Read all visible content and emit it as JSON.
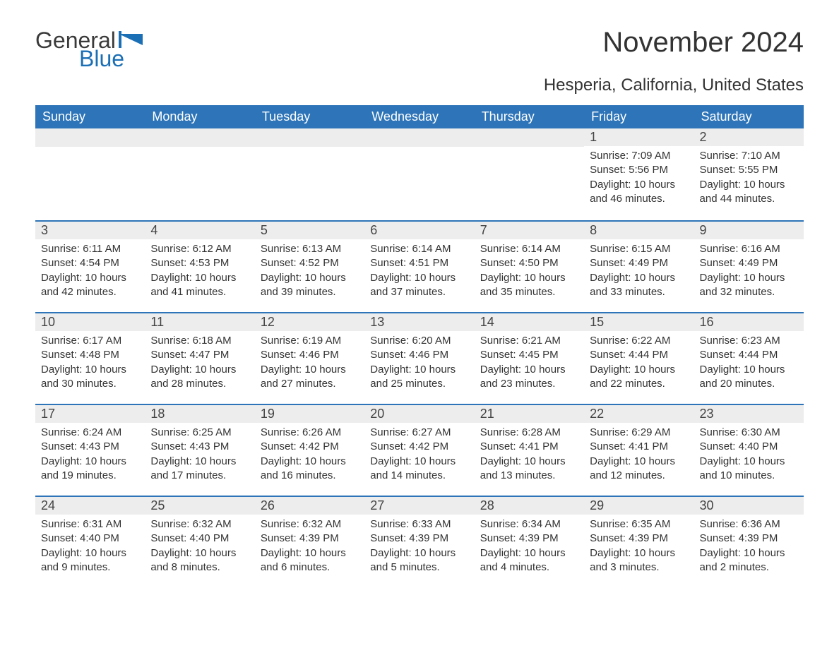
{
  "logo": {
    "general": "General",
    "blue": "Blue"
  },
  "title": "November 2024",
  "location": "Hesperia, California, United States",
  "colors": {
    "header_bg": "#2d74b8",
    "header_text": "#ffffff",
    "daynum_bg": "#ededed",
    "border": "#2d74b8",
    "text": "#333333",
    "logo_blue": "#1b6fb5",
    "page_bg": "#ffffff"
  },
  "typography": {
    "title_fontsize": 40,
    "location_fontsize": 24,
    "header_fontsize": 18,
    "daynum_fontsize": 18,
    "body_fontsize": 15
  },
  "weekdays": [
    "Sunday",
    "Monday",
    "Tuesday",
    "Wednesday",
    "Thursday",
    "Friday",
    "Saturday"
  ],
  "weeks": [
    [
      null,
      null,
      null,
      null,
      null,
      {
        "n": "1",
        "sunrise": "Sunrise: 7:09 AM",
        "sunset": "Sunset: 5:56 PM",
        "daylight": "Daylight: 10 hours and 46 minutes."
      },
      {
        "n": "2",
        "sunrise": "Sunrise: 7:10 AM",
        "sunset": "Sunset: 5:55 PM",
        "daylight": "Daylight: 10 hours and 44 minutes."
      }
    ],
    [
      {
        "n": "3",
        "sunrise": "Sunrise: 6:11 AM",
        "sunset": "Sunset: 4:54 PM",
        "daylight": "Daylight: 10 hours and 42 minutes."
      },
      {
        "n": "4",
        "sunrise": "Sunrise: 6:12 AM",
        "sunset": "Sunset: 4:53 PM",
        "daylight": "Daylight: 10 hours and 41 minutes."
      },
      {
        "n": "5",
        "sunrise": "Sunrise: 6:13 AM",
        "sunset": "Sunset: 4:52 PM",
        "daylight": "Daylight: 10 hours and 39 minutes."
      },
      {
        "n": "6",
        "sunrise": "Sunrise: 6:14 AM",
        "sunset": "Sunset: 4:51 PM",
        "daylight": "Daylight: 10 hours and 37 minutes."
      },
      {
        "n": "7",
        "sunrise": "Sunrise: 6:14 AM",
        "sunset": "Sunset: 4:50 PM",
        "daylight": "Daylight: 10 hours and 35 minutes."
      },
      {
        "n": "8",
        "sunrise": "Sunrise: 6:15 AM",
        "sunset": "Sunset: 4:49 PM",
        "daylight": "Daylight: 10 hours and 33 minutes."
      },
      {
        "n": "9",
        "sunrise": "Sunrise: 6:16 AM",
        "sunset": "Sunset: 4:49 PM",
        "daylight": "Daylight: 10 hours and 32 minutes."
      }
    ],
    [
      {
        "n": "10",
        "sunrise": "Sunrise: 6:17 AM",
        "sunset": "Sunset: 4:48 PM",
        "daylight": "Daylight: 10 hours and 30 minutes."
      },
      {
        "n": "11",
        "sunrise": "Sunrise: 6:18 AM",
        "sunset": "Sunset: 4:47 PM",
        "daylight": "Daylight: 10 hours and 28 minutes."
      },
      {
        "n": "12",
        "sunrise": "Sunrise: 6:19 AM",
        "sunset": "Sunset: 4:46 PM",
        "daylight": "Daylight: 10 hours and 27 minutes."
      },
      {
        "n": "13",
        "sunrise": "Sunrise: 6:20 AM",
        "sunset": "Sunset: 4:46 PM",
        "daylight": "Daylight: 10 hours and 25 minutes."
      },
      {
        "n": "14",
        "sunrise": "Sunrise: 6:21 AM",
        "sunset": "Sunset: 4:45 PM",
        "daylight": "Daylight: 10 hours and 23 minutes."
      },
      {
        "n": "15",
        "sunrise": "Sunrise: 6:22 AM",
        "sunset": "Sunset: 4:44 PM",
        "daylight": "Daylight: 10 hours and 22 minutes."
      },
      {
        "n": "16",
        "sunrise": "Sunrise: 6:23 AM",
        "sunset": "Sunset: 4:44 PM",
        "daylight": "Daylight: 10 hours and 20 minutes."
      }
    ],
    [
      {
        "n": "17",
        "sunrise": "Sunrise: 6:24 AM",
        "sunset": "Sunset: 4:43 PM",
        "daylight": "Daylight: 10 hours and 19 minutes."
      },
      {
        "n": "18",
        "sunrise": "Sunrise: 6:25 AM",
        "sunset": "Sunset: 4:43 PM",
        "daylight": "Daylight: 10 hours and 17 minutes."
      },
      {
        "n": "19",
        "sunrise": "Sunrise: 6:26 AM",
        "sunset": "Sunset: 4:42 PM",
        "daylight": "Daylight: 10 hours and 16 minutes."
      },
      {
        "n": "20",
        "sunrise": "Sunrise: 6:27 AM",
        "sunset": "Sunset: 4:42 PM",
        "daylight": "Daylight: 10 hours and 14 minutes."
      },
      {
        "n": "21",
        "sunrise": "Sunrise: 6:28 AM",
        "sunset": "Sunset: 4:41 PM",
        "daylight": "Daylight: 10 hours and 13 minutes."
      },
      {
        "n": "22",
        "sunrise": "Sunrise: 6:29 AM",
        "sunset": "Sunset: 4:41 PM",
        "daylight": "Daylight: 10 hours and 12 minutes."
      },
      {
        "n": "23",
        "sunrise": "Sunrise: 6:30 AM",
        "sunset": "Sunset: 4:40 PM",
        "daylight": "Daylight: 10 hours and 10 minutes."
      }
    ],
    [
      {
        "n": "24",
        "sunrise": "Sunrise: 6:31 AM",
        "sunset": "Sunset: 4:40 PM",
        "daylight": "Daylight: 10 hours and 9 minutes."
      },
      {
        "n": "25",
        "sunrise": "Sunrise: 6:32 AM",
        "sunset": "Sunset: 4:40 PM",
        "daylight": "Daylight: 10 hours and 8 minutes."
      },
      {
        "n": "26",
        "sunrise": "Sunrise: 6:32 AM",
        "sunset": "Sunset: 4:39 PM",
        "daylight": "Daylight: 10 hours and 6 minutes."
      },
      {
        "n": "27",
        "sunrise": "Sunrise: 6:33 AM",
        "sunset": "Sunset: 4:39 PM",
        "daylight": "Daylight: 10 hours and 5 minutes."
      },
      {
        "n": "28",
        "sunrise": "Sunrise: 6:34 AM",
        "sunset": "Sunset: 4:39 PM",
        "daylight": "Daylight: 10 hours and 4 minutes."
      },
      {
        "n": "29",
        "sunrise": "Sunrise: 6:35 AM",
        "sunset": "Sunset: 4:39 PM",
        "daylight": "Daylight: 10 hours and 3 minutes."
      },
      {
        "n": "30",
        "sunrise": "Sunrise: 6:36 AM",
        "sunset": "Sunset: 4:39 PM",
        "daylight": "Daylight: 10 hours and 2 minutes."
      }
    ]
  ]
}
